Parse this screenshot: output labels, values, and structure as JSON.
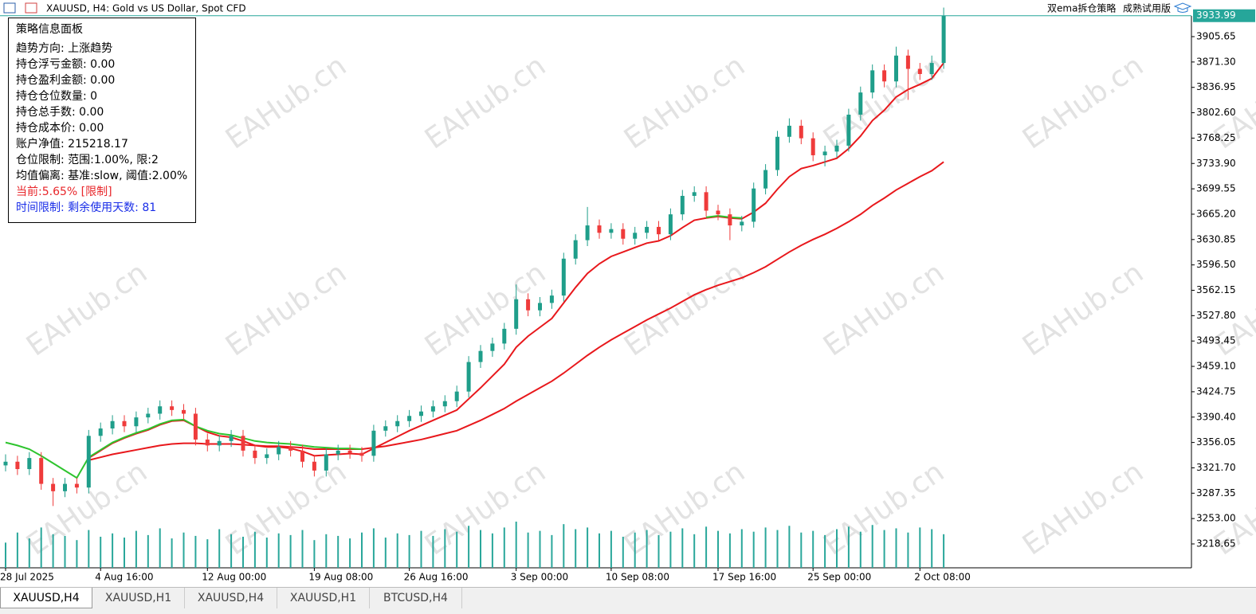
{
  "header": {
    "title": "XAUUSD, H4:  Gold vs US Dollar, Spot CFD",
    "ea_name": "双ema拆仓策略",
    "ea_edition": "成熟试用版"
  },
  "info_panel": {
    "title": "策略信息面板",
    "lines": [
      {
        "text": "趋势方向: 上涨趋势",
        "color": "#000000"
      },
      {
        "text": "持仓浮亏金额: 0.00",
        "color": "#000000"
      },
      {
        "text": "持仓盈利金额: 0.00",
        "color": "#000000"
      },
      {
        "text": "持仓仓位数量: 0",
        "color": "#000000"
      },
      {
        "text": "持仓总手数: 0.00",
        "color": "#000000"
      },
      {
        "text": "持仓成本价: 0.00",
        "color": "#000000"
      },
      {
        "text": "账户净值: 215218.17",
        "color": "#000000"
      },
      {
        "text": "仓位限制: 范围:1.00%, 限:2",
        "color": "#000000"
      },
      {
        "text": "均值偏离: 基准:slow, 阈值:2.00%",
        "color": "#000000"
      },
      {
        "text": "当前:5.65% [限制]",
        "color": "#e8262a"
      },
      {
        "text": "时间限制: 剩余使用天数: 81",
        "color": "#1a2ee8"
      }
    ]
  },
  "watermark": "EAHub.cn",
  "tabs": [
    "XAUUSD,H4",
    "XAUUSD,H1",
    "XAUUSD,H4",
    "XAUUSD,H1",
    "BTCUSD,H4"
  ],
  "chart_data": {
    "type": "candlestick",
    "up_color": "#1f9e8a",
    "down_color": "#ef3b3b",
    "volume_color": "#2aa79b",
    "current_price": 3933.99,
    "current_color": "#26a69a",
    "ylim": [
      3186.3,
      3933.7
    ],
    "yticks": [
      3218.65,
      {
        "value": 3253.0,
        "label": "3253.00"
      },
      3287.35,
      {
        "value": 3321.7,
        "label": "3321.70"
      },
      3356.05,
      {
        "value": 3390.4,
        "label": "3390.40"
      },
      3424.75,
      {
        "value": 3459.1,
        "label": "3459.10"
      },
      3493.45,
      {
        "value": 3527.8,
        "label": "3527.80"
      },
      3562.15,
      {
        "value": 3596.5,
        "label": "3596.50"
      },
      3630.85,
      {
        "value": 3665.2,
        "label": "3665.20"
      },
      3699.55,
      {
        "value": 3733.9,
        "label": "3733.90"
      },
      3768.25,
      {
        "value": 3802.6,
        "label": "3802.60"
      },
      3836.95,
      {
        "value": 3871.3,
        "label": "3871.30"
      },
      3905.65
    ],
    "categories": [
      "28 Jul 2025",
      null,
      null,
      null,
      null,
      null,
      null,
      null,
      "4 Aug 16:00",
      null,
      null,
      null,
      null,
      null,
      null,
      null,
      null,
      "12 Aug 00:00",
      null,
      null,
      null,
      null,
      null,
      null,
      null,
      null,
      "19 Aug 08:00",
      null,
      null,
      null,
      null,
      null,
      null,
      null,
      "26 Aug 16:00",
      null,
      null,
      null,
      null,
      null,
      null,
      null,
      null,
      "3 Sep 00:00",
      null,
      null,
      null,
      null,
      null,
      null,
      null,
      "10 Sep 08:00",
      null,
      null,
      null,
      null,
      null,
      null,
      null,
      null,
      "17 Sep 16:00",
      null,
      null,
      null,
      null,
      null,
      null,
      null,
      "25 Sep 00:00",
      null,
      null,
      null,
      null,
      null,
      null,
      null,
      null,
      "2 Oct 08:00",
      null,
      null
    ],
    "open": [
      3325,
      3330,
      3320,
      3335,
      3300,
      3290,
      3300,
      3295,
      3365,
      3375,
      3385,
      3378,
      3390,
      3395,
      3405,
      3400,
      3395,
      3360,
      3352,
      3358,
      3365,
      3345,
      3335,
      3340,
      3350,
      3345,
      3330,
      3318,
      3340,
      3345,
      3342,
      3338,
      3372,
      3378,
      3385,
      3392,
      3398,
      3405,
      3412,
      3425,
      3465,
      3480,
      3490,
      3510,
      3550,
      3535,
      3545,
      3555,
      3605,
      3630,
      3650,
      3640,
      3645,
      3632,
      3640,
      3648,
      3638,
      3665,
      3690,
      3695,
      3670,
      3665,
      3650,
      3655,
      3700,
      3725,
      3770,
      3785,
      3768,
      3745,
      3750,
      3758,
      3800,
      3830,
      3860,
      3845,
      3880,
      3862,
      3855,
      3870
    ],
    "high": [
      3340,
      3338,
      3343,
      3343,
      3308,
      3308,
      3308,
      3373,
      3383,
      3393,
      3393,
      3398,
      3403,
      3413,
      3413,
      3408,
      3403,
      3368,
      3366,
      3373,
      3373,
      3353,
      3348,
      3358,
      3358,
      3353,
      3338,
      3348,
      3353,
      3353,
      3350,
      3380,
      3386,
      3393,
      3400,
      3406,
      3413,
      3420,
      3433,
      3473,
      3488,
      3498,
      3518,
      3570,
      3558,
      3553,
      3563,
      3613,
      3638,
      3675,
      3658,
      3653,
      3653,
      3648,
      3656,
      3656,
      3673,
      3698,
      3703,
      3703,
      3678,
      3673,
      3663,
      3708,
      3733,
      3778,
      3795,
      3793,
      3776,
      3758,
      3766,
      3808,
      3838,
      3868,
      3868,
      3892,
      3888,
      3870,
      3880,
      3945
    ],
    "low": [
      3317,
      3312,
      3312,
      3292,
      3270,
      3282,
      3287,
      3287,
      3357,
      3367,
      3370,
      3370,
      3382,
      3387,
      3392,
      3387,
      3352,
      3344,
      3344,
      3350,
      3337,
      3327,
      3327,
      3332,
      3337,
      3322,
      3310,
      3310,
      3332,
      3334,
      3330,
      3330,
      3364,
      3370,
      3377,
      3384,
      3390,
      3397,
      3404,
      3417,
      3457,
      3472,
      3482,
      3502,
      3527,
      3527,
      3537,
      3547,
      3597,
      3622,
      3632,
      3632,
      3624,
      3624,
      3632,
      3630,
      3630,
      3657,
      3682,
      3662,
      3657,
      3630,
      3642,
      3647,
      3692,
      3717,
      3762,
      3760,
      3737,
      3730,
      3742,
      3750,
      3792,
      3822,
      3837,
      3837,
      3820,
      3847,
      3847,
      3862
    ],
    "close": [
      3330,
      3320,
      3335,
      3300,
      3290,
      3300,
      3295,
      3365,
      3375,
      3385,
      3378,
      3390,
      3395,
      3405,
      3400,
      3395,
      3360,
      3352,
      3358,
      3365,
      3345,
      3335,
      3340,
      3350,
      3345,
      3330,
      3318,
      3340,
      3345,
      3342,
      3338,
      3372,
      3378,
      3385,
      3392,
      3398,
      3405,
      3412,
      3425,
      3465,
      3480,
      3490,
      3510,
      3550,
      3535,
      3545,
      3555,
      3605,
      3630,
      3650,
      3640,
      3645,
      3632,
      3640,
      3648,
      3638,
      3665,
      3690,
      3695,
      3670,
      3665,
      3650,
      3655,
      3700,
      3725,
      3770,
      3785,
      3768,
      3745,
      3750,
      3758,
      3800,
      3830,
      3860,
      3845,
      3880,
      3862,
      3855,
      3870,
      3934
    ],
    "volume": [
      30,
      42,
      35,
      48,
      40,
      38,
      33,
      45,
      37,
      41,
      36,
      44,
      39,
      47,
      35,
      42,
      38,
      34,
      46,
      40,
      37,
      43,
      36,
      41,
      39,
      45,
      33,
      40,
      38,
      35,
      42,
      47,
      36,
      41,
      39,
      44,
      38,
      46,
      43,
      50,
      45,
      41,
      48,
      55,
      42,
      44,
      39,
      52,
      46,
      48,
      41,
      44,
      37,
      42,
      45,
      39,
      43,
      47,
      40,
      49,
      44,
      41,
      46,
      43,
      48,
      45,
      50,
      42,
      44,
      39,
      46,
      49,
      43,
      51,
      45,
      47,
      42,
      48,
      46,
      40
    ],
    "series": [
      {
        "color": "#e8181c",
        "values": [
          null,
          null,
          null,
          null,
          null,
          null,
          null,
          3332,
          3336,
          3340,
          3343,
          3346,
          3349,
          3352,
          3354,
          3355,
          3355,
          3354,
          3354,
          3354,
          3353,
          3352,
          3351,
          3351,
          3350,
          3349,
          3347,
          3347,
          3347,
          3347,
          3347,
          3349,
          3351,
          3354,
          3357,
          3360,
          3364,
          3368,
          3372,
          3379,
          3386,
          3394,
          3402,
          3412,
          3421,
          3430,
          3439,
          3450,
          3462,
          3474,
          3485,
          3495,
          3504,
          3513,
          3522,
          3530,
          3538,
          3547,
          3556,
          3563,
          3569,
          3574,
          3579,
          3586,
          3594,
          3604,
          3614,
          3623,
          3631,
          3638,
          3646,
          3655,
          3665,
          3677,
          3687,
          3698,
          3707,
          3716,
          3724,
          3736
        ]
      },
      {
        "color": "#e8181c",
        "values": [
          null,
          null,
          null,
          null,
          null,
          null,
          null,
          3335,
          3345,
          3355,
          3362,
          3368,
          3373,
          3380,
          3385,
          3386,
          3378,
          3370,
          3365,
          3363,
          3358,
          3352,
          3350,
          3350,
          3348,
          3344,
          3338,
          3339,
          3340,
          3341,
          3340,
          3348,
          3356,
          3364,
          3372,
          3379,
          3386,
          3393,
          3400,
          3415,
          3430,
          3446,
          3462,
          3485,
          3500,
          3512,
          3524,
          3545,
          3566,
          3585,
          3598,
          3608,
          3614,
          3620,
          3626,
          3629,
          3636,
          3647,
          3657,
          3660,
          3662,
          3660,
          3659,
          3668,
          3680,
          3699,
          3716,
          3727,
          3731,
          3736,
          3741,
          3754,
          3771,
          3792,
          3806,
          3824,
          3834,
          3841,
          3849,
          3870
        ]
      },
      {
        "color": "#2ec42e",
        "values": [
          3356,
          3352,
          3347,
          3338,
          3328,
          3318,
          3308,
          3336,
          3346,
          3356,
          3363,
          3369,
          3374,
          3381,
          3386,
          3387,
          3378,
          3372,
          3368,
          3366,
          3362,
          3358,
          3356,
          3355,
          3354,
          3352,
          3350,
          3349,
          3348,
          3348,
          3347,
          null,
          null,
          null,
          null,
          null,
          null,
          null,
          null,
          null,
          null,
          null,
          null,
          null,
          null,
          null,
          null,
          null,
          null,
          null,
          null,
          null,
          null,
          null,
          null,
          null,
          null,
          null,
          null,
          3661,
          3663,
          3661,
          3660,
          null,
          null,
          null,
          null,
          null,
          null,
          null,
          null,
          null,
          null,
          null,
          null,
          null,
          null,
          null,
          null,
          null
        ]
      }
    ]
  }
}
